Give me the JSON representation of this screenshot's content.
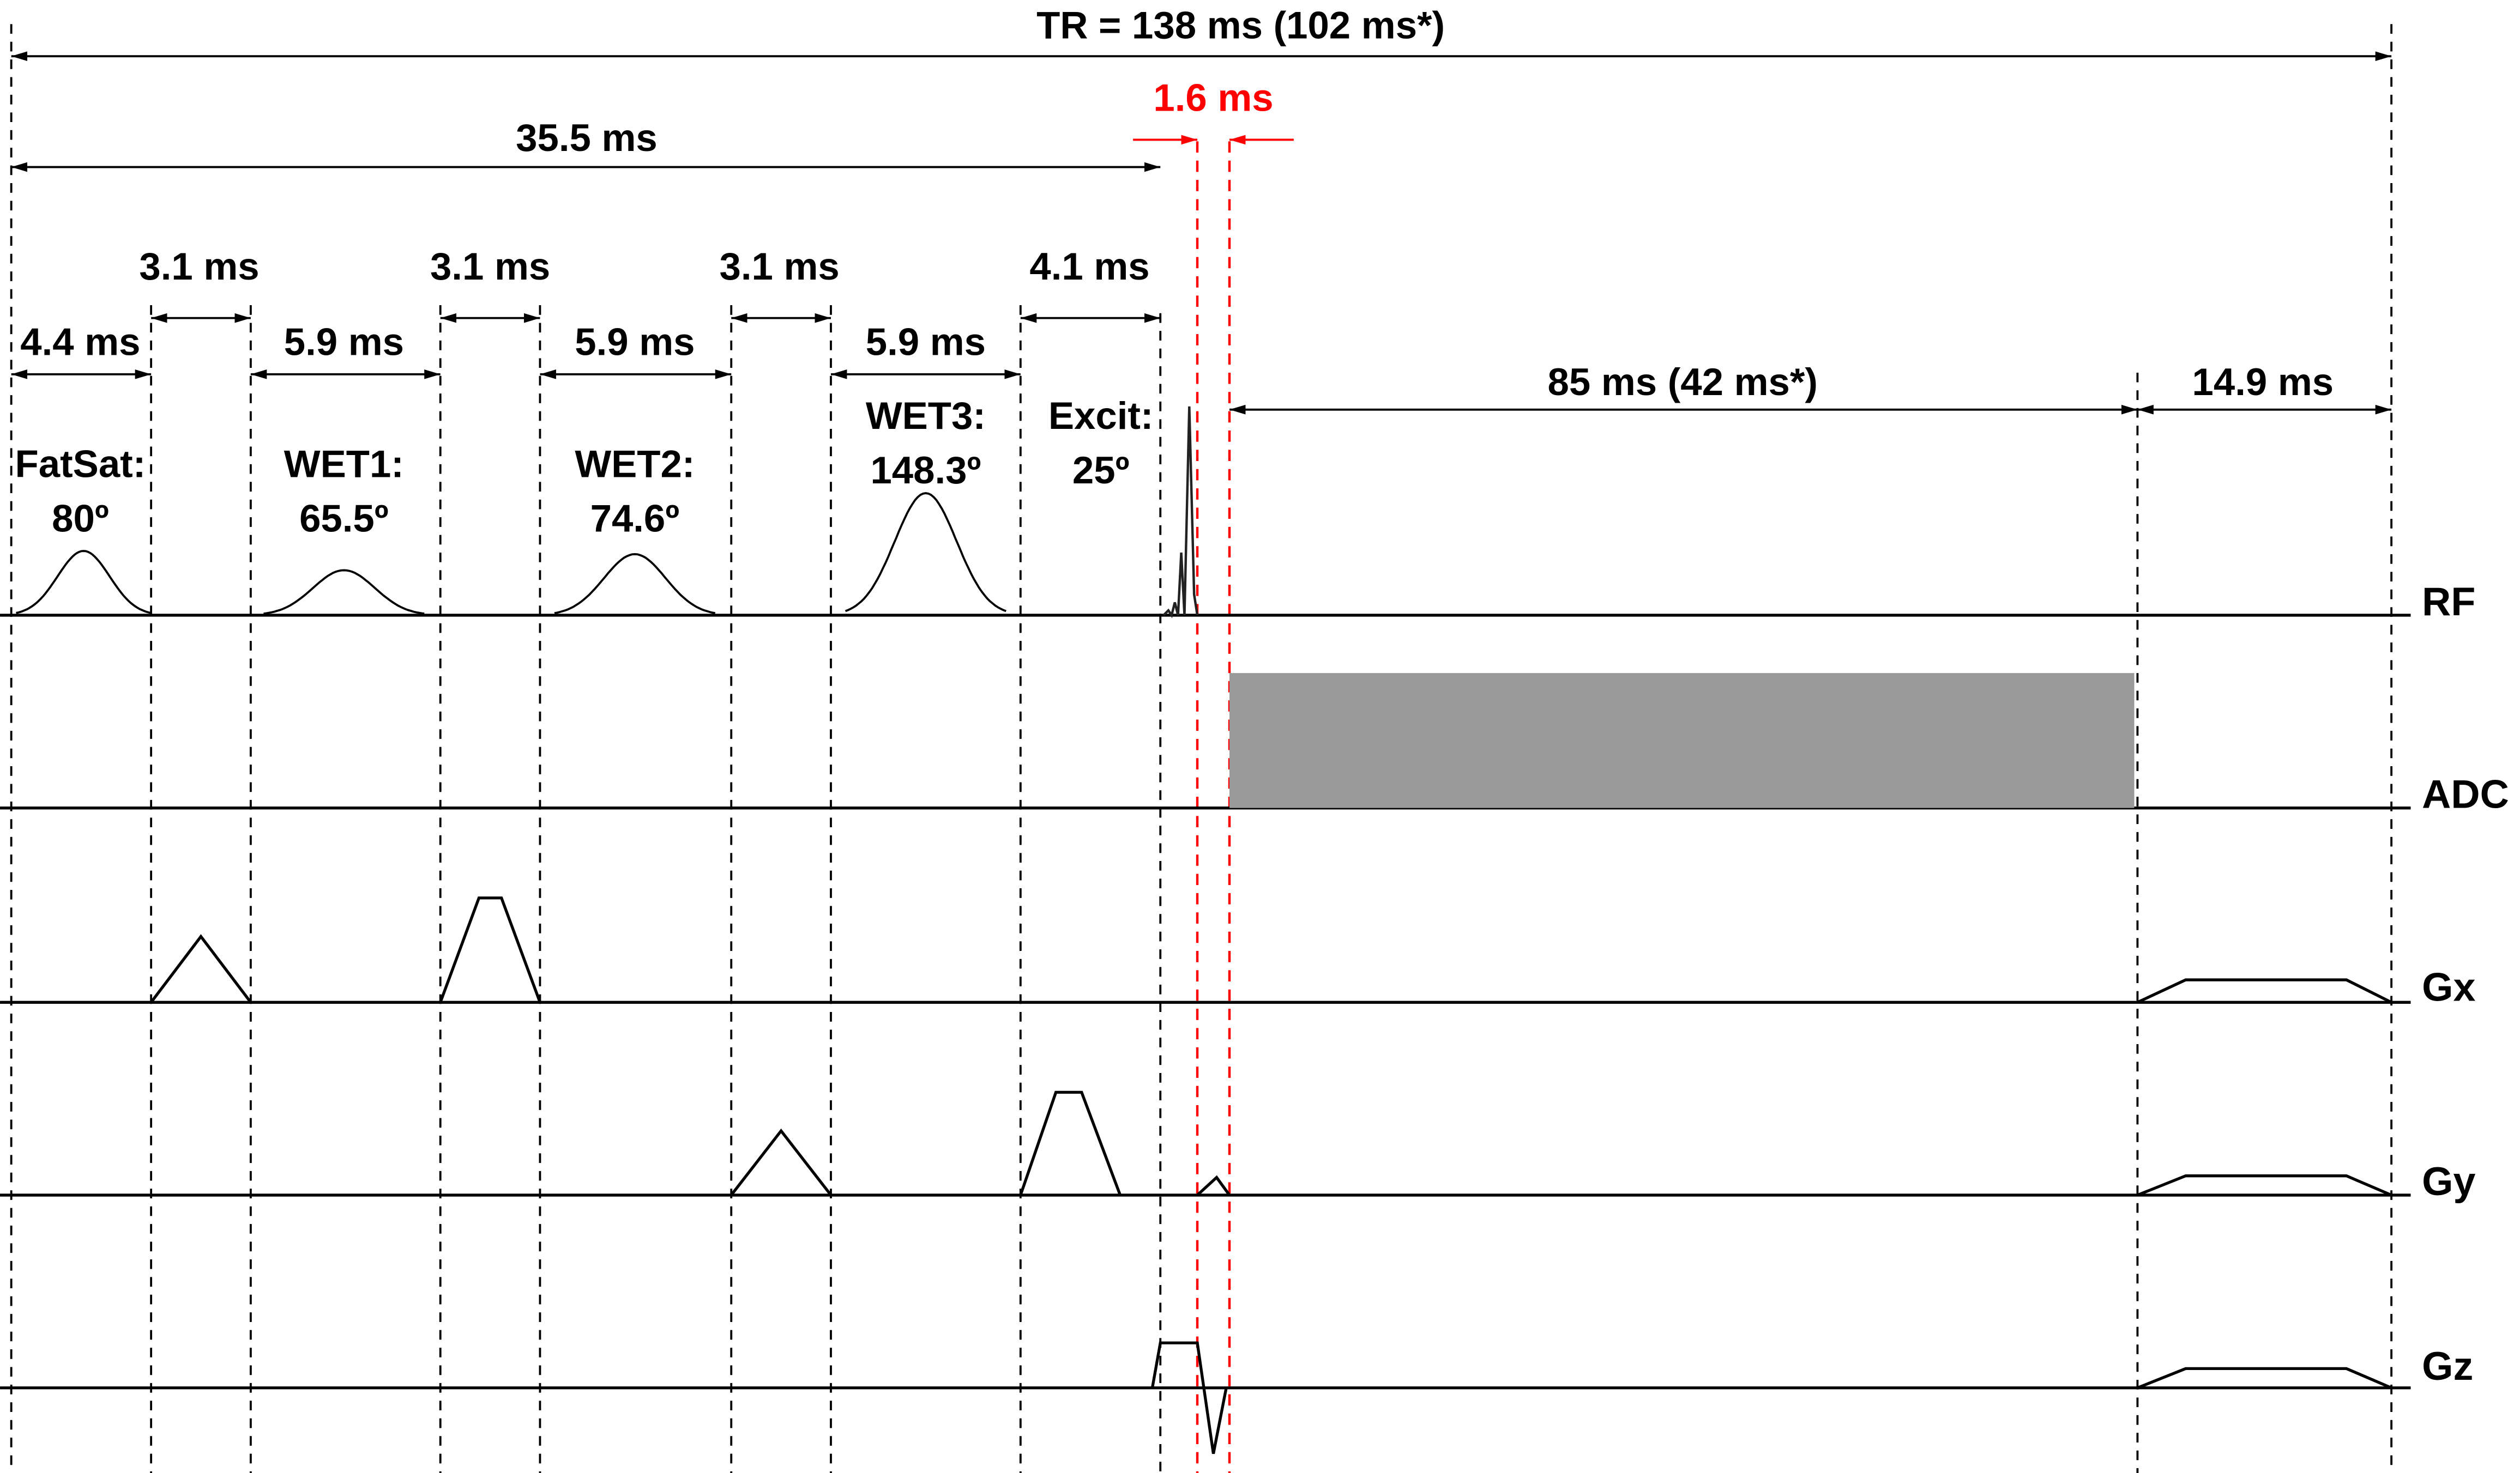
{
  "timings": {
    "tr": "TR = 138 ms (102 ms*)",
    "prep": "35.5 ms",
    "gap_red": "1.6 ms",
    "spoil1": "3.1 ms",
    "spoil2": "3.1 ms",
    "spoil3": "3.1 ms",
    "spoil4": "4.1 ms",
    "fatsat_dur": "4.4 ms",
    "wet1_dur": "5.9 ms",
    "wet2_dur": "5.9 ms",
    "wet3_dur": "5.9 ms",
    "acq": "85 ms (42 ms*)",
    "tail": "14.9 ms"
  },
  "pulses": {
    "fatsat": {
      "name": "FatSat:",
      "angle": "80º"
    },
    "wet1": {
      "name": "WET1:",
      "angle": "65.5º"
    },
    "wet2": {
      "name": "WET2:",
      "angle": "74.6º"
    },
    "wet3": {
      "name": "WET3:",
      "angle": "148.3º"
    },
    "excit": {
      "name": "Excit:",
      "angle": "25º"
    }
  },
  "channels": {
    "rf": "RF",
    "adc": "ADC",
    "gx": "Gx",
    "gy": "Gy",
    "gz": "Gz"
  },
  "colors": {
    "line": "#000000",
    "highlight": "#ff0000",
    "adc_fill": "#999999"
  }
}
